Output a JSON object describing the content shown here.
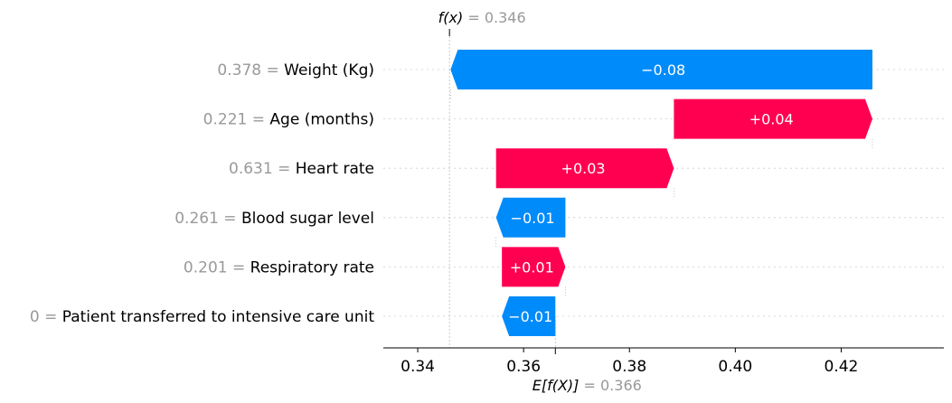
{
  "chart_data": {
    "type": "waterfall",
    "fx": {
      "label": "f(x)",
      "value": "0.346",
      "numeric": 0.346
    },
    "base": {
      "label": "E[f(X)]",
      "value": "0.366",
      "numeric": 0.366
    },
    "xlim": [
      0.3335,
      0.4394
    ],
    "x_ticks": [
      {
        "value": 0.34,
        "label": "0.34"
      },
      {
        "value": 0.36,
        "label": "0.36"
      },
      {
        "value": 0.38,
        "label": "0.38"
      },
      {
        "value": 0.4,
        "label": "0.40"
      },
      {
        "value": 0.42,
        "label": "0.42"
      }
    ],
    "features": [
      {
        "value_text": "0.378",
        "name": "Weight (Kg)",
        "start": 0.4259,
        "end": 0.3462,
        "label": "−0.08",
        "sign": "neg"
      },
      {
        "value_text": "0.221",
        "name": "Age (months)",
        "start": 0.3884,
        "end": 0.4259,
        "label": "+0.04",
        "sign": "pos"
      },
      {
        "value_text": "0.631",
        "name": "Heart rate",
        "start": 0.3548,
        "end": 0.3884,
        "label": "+0.03",
        "sign": "pos"
      },
      {
        "value_text": "0.261",
        "name": "Blood sugar level",
        "start": 0.3679,
        "end": 0.3548,
        "label": "−0.01",
        "sign": "neg"
      },
      {
        "value_text": "0.201",
        "name": "Respiratory rate",
        "start": 0.3559,
        "end": 0.3679,
        "label": "+0.01",
        "sign": "pos"
      },
      {
        "value_text": "0",
        "name": "Patient transferred to intensive care unit",
        "start": 0.366,
        "end": 0.3559,
        "label": "−0.01",
        "sign": "neg"
      }
    ],
    "colors": {
      "positive": "#ff0051",
      "negative": "#008bfb",
      "value_gray": "#999999",
      "grid": "#cccccc"
    },
    "grid": "horizontal-dotted"
  }
}
